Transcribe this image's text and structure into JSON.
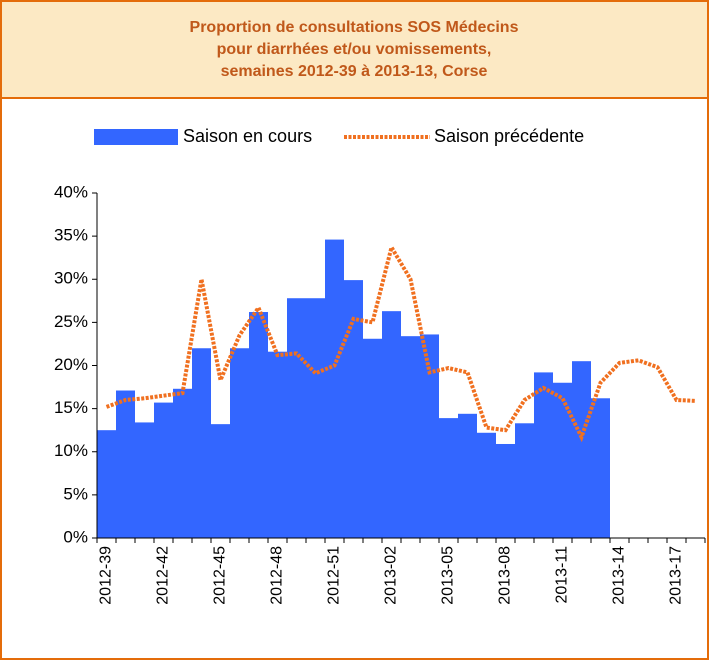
{
  "chart_data": {
    "type": "bar-line",
    "title": [
      "Proportion de consultations SOS Médecins",
      "pour diarrhées et/ou vomissements,",
      "semaines 2012-39 à 2013-13, Corse"
    ],
    "categories": [
      "2012-39",
      null,
      null,
      "2012-42",
      null,
      null,
      "2012-45",
      null,
      null,
      "2012-48",
      null,
      null,
      "2012-51",
      null,
      null,
      "2013-02",
      null,
      null,
      "2013-05",
      null,
      null,
      "2013-08",
      null,
      null,
      "2013-11",
      null,
      null,
      "2013-14",
      null,
      null,
      "2013-17",
      null
    ],
    "series": [
      {
        "name": "Saison en cours",
        "type": "bar",
        "color": "#3366ff",
        "values": [
          12.5,
          17.1,
          13.4,
          15.7,
          17.3,
          22,
          13.2,
          22,
          26.2,
          21.6,
          27.8,
          27.8,
          34.6,
          29.9,
          23.1,
          26.3,
          23.4,
          23.6,
          13.9,
          14.4,
          12.2,
          10.9,
          13.3,
          19.2,
          18,
          20.5,
          16.2,
          null,
          null,
          null,
          null,
          null
        ]
      },
      {
        "name": "Saison précédente",
        "type": "line",
        "color": "#f07020",
        "values": [
          15.2,
          16,
          16.2,
          16.5,
          16.8,
          30,
          18.3,
          23.5,
          26.7,
          21.2,
          21.4,
          19.1,
          20,
          25.4,
          25,
          33.7,
          30,
          19.2,
          19.7,
          19.2,
          12.8,
          12.5,
          16,
          17.4,
          16.2,
          11.7,
          18,
          20.3,
          20.6,
          19.8,
          16,
          15.9
        ]
      }
    ],
    "ylim": [
      0,
      40
    ],
    "yticks": [
      {
        "value": 0,
        "label": "0%"
      },
      {
        "value": 5,
        "label": "5%"
      },
      {
        "value": 10,
        "label": "10%"
      },
      {
        "value": 15,
        "label": "15%"
      },
      {
        "value": 20,
        "label": "20%"
      },
      {
        "value": 25,
        "label": "25%"
      },
      {
        "value": 30,
        "label": "30%"
      },
      {
        "value": 35,
        "label": "35%"
      },
      {
        "value": 40,
        "label": "40%"
      }
    ],
    "grid": false,
    "legend": "top"
  }
}
